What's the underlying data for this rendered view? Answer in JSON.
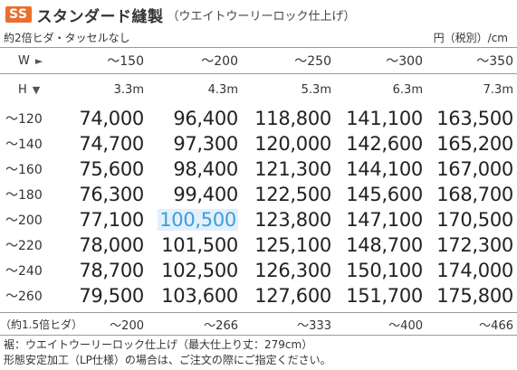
{
  "header": {
    "badge": "SS",
    "title": "スタンダード縫製",
    "subtitle": "（ウエイトウーリーロック仕上げ）",
    "note": "約2倍ヒダ・タッセルなし",
    "unit": "円（税別）/cm"
  },
  "axes": {
    "w_label": "W",
    "h_label": "H"
  },
  "width_headers": [
    "～150",
    "～200",
    "～250",
    "～300",
    "～350"
  ],
  "meter_headers": [
    "3.3m",
    "4.3m",
    "5.3m",
    "6.3m",
    "7.3m"
  ],
  "rows": [
    {
      "label": "～120",
      "values": [
        "74,000",
        "96,400",
        "118,800",
        "141,100",
        "163,500"
      ]
    },
    {
      "label": "～140",
      "values": [
        "74,700",
        "97,300",
        "120,000",
        "142,600",
        "165,200"
      ]
    },
    {
      "label": "～160",
      "values": [
        "75,600",
        "98,400",
        "121,300",
        "144,100",
        "167,000"
      ]
    },
    {
      "label": "～180",
      "values": [
        "76,300",
        "99,400",
        "122,500",
        "145,600",
        "168,700"
      ]
    },
    {
      "label": "～200",
      "values": [
        "77,100",
        "100,500",
        "123,800",
        "147,100",
        "170,500"
      ]
    },
    {
      "label": "～220",
      "values": [
        "78,000",
        "101,500",
        "125,100",
        "148,700",
        "172,300"
      ]
    },
    {
      "label": "～240",
      "values": [
        "78,700",
        "102,500",
        "126,300",
        "150,100",
        "174,000"
      ]
    },
    {
      "label": "～260",
      "values": [
        "79,500",
        "103,600",
        "127,600",
        "151,700",
        "175,800"
      ]
    }
  ],
  "footer_row": {
    "label": "（約1.5倍ヒダ）",
    "values": [
      "～200",
      "～266",
      "～333",
      "～400",
      "～466"
    ]
  },
  "notes": [
    "裾：ウエイトウーリーロック仕上げ（最大仕上り丈：279cm）",
    "形態安定加工（LP仕様）の場合は、ご注文の際にご指定ください。"
  ],
  "colors": {
    "badge": "#e9702c",
    "highlight_text": "#3b9ee0",
    "highlight_bg": "#e2f0fb"
  }
}
